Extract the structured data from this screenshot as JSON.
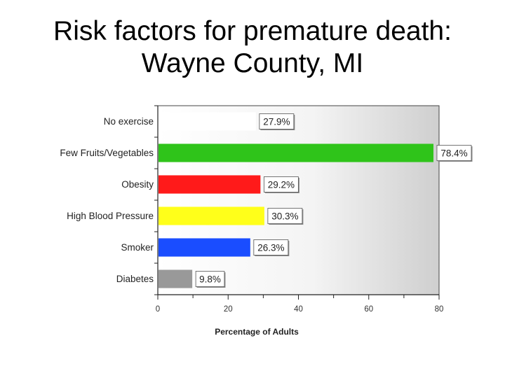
{
  "slide": {
    "title_line1": "Risk factors for premature death:",
    "title_line2": "Wayne County, MI"
  },
  "colors": {
    "no_exercise": "#ffffff",
    "few_fruits": "#2fc41a",
    "obesity": "#ff1a1a",
    "high_bp": "#ffff1a",
    "smoker": "#1a4dff",
    "diabetes": "#999999"
  },
  "chart_data": {
    "type": "bar",
    "orientation": "horizontal",
    "title": "",
    "categories": [
      "No exercise",
      "Few Fruits/Vegetables",
      "Obesity",
      "High Blood Pressure",
      "Smoker",
      "Diabetes"
    ],
    "values": [
      27.9,
      78.4,
      29.2,
      30.3,
      26.3,
      9.8
    ],
    "value_labels": [
      "27.9%",
      "78.4%",
      "29.2%",
      "30.3%",
      "26.3%",
      "9.8%"
    ],
    "bar_colors": [
      "#ffffff",
      "#2fc41a",
      "#ff1a1a",
      "#ffff1a",
      "#1a4dff",
      "#999999"
    ],
    "xlabel": "Percentage of Adults",
    "ylabel": "",
    "xlim": [
      0,
      80
    ],
    "xticks": [
      0,
      20,
      40,
      60,
      80
    ],
    "xtick_labels": [
      "0",
      "20",
      "40",
      "60",
      "80"
    ],
    "grid": false,
    "legend": "none"
  }
}
